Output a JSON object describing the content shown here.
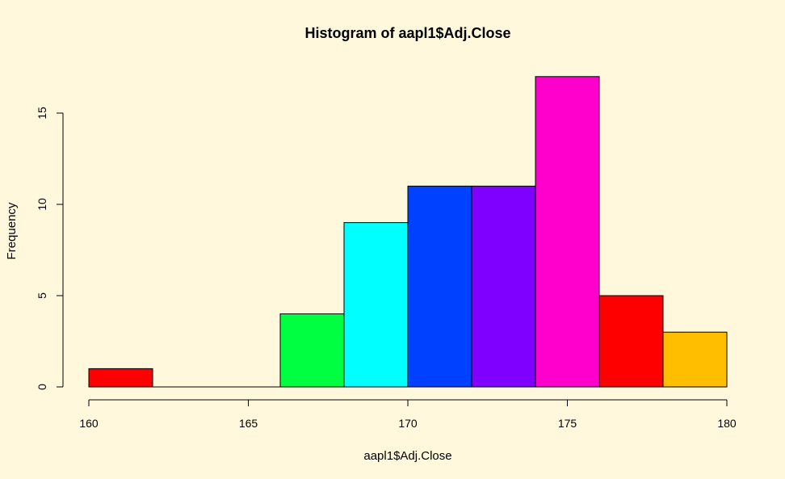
{
  "chart_data": {
    "type": "bar",
    "title": "Histogram of aapl1$Adj.Close",
    "xlabel": "aapl1$Adj.Close",
    "ylabel": "Frequency",
    "xlim": [
      160,
      180
    ],
    "ylim": [
      0,
      17
    ],
    "x_ticks": [
      "160",
      "165",
      "170",
      "175",
      "180"
    ],
    "y_ticks": [
      "0",
      "5",
      "10",
      "15"
    ],
    "bins": [
      {
        "start": 160,
        "end": 162,
        "count": 1,
        "color": "#ff0000"
      },
      {
        "start": 162,
        "end": 164,
        "count": 0,
        "color": "#ff9900"
      },
      {
        "start": 164,
        "end": 166,
        "count": 0,
        "color": "#ccff00"
      },
      {
        "start": 166,
        "end": 168,
        "count": 4,
        "color": "#00ff40"
      },
      {
        "start": 168,
        "end": 170,
        "count": 9,
        "color": "#00ffff"
      },
      {
        "start": 170,
        "end": 172,
        "count": 11,
        "color": "#0040ff"
      },
      {
        "start": 172,
        "end": 174,
        "count": 11,
        "color": "#8000ff"
      },
      {
        "start": 174,
        "end": 176,
        "count": 17,
        "color": "#ff00cc"
      },
      {
        "start": 176,
        "end": 178,
        "count": 5,
        "color": "#ff0000"
      },
      {
        "start": 178,
        "end": 180,
        "count": 3,
        "color": "#ffbf00"
      }
    ],
    "grid": false,
    "background_color": "#fff8dc"
  }
}
